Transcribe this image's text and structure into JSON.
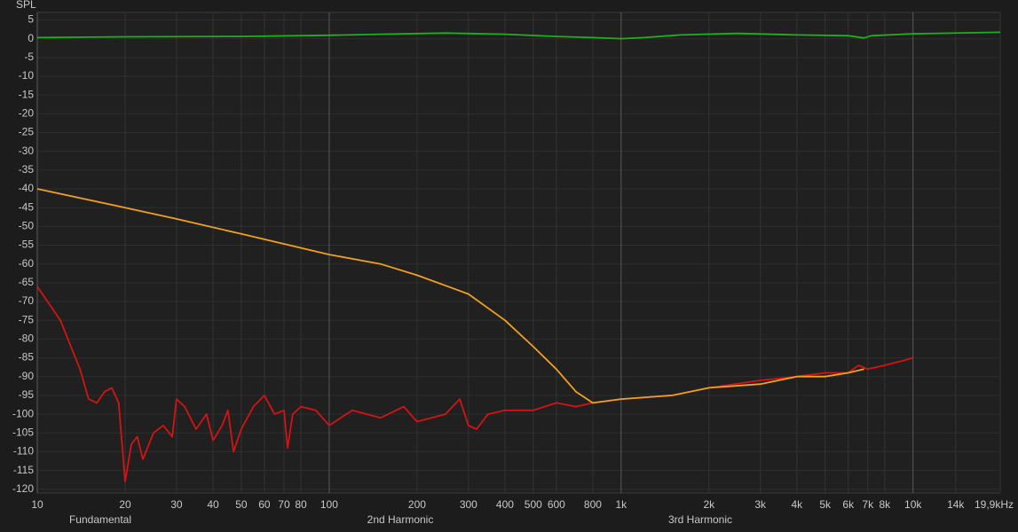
{
  "chart_data": {
    "type": "line",
    "y_label": "SPL",
    "log_x": true,
    "grid": true,
    "xlim": [
      10,
      19900
    ],
    "ylim": [
      -121,
      7
    ],
    "xticks": [
      10,
      20,
      30,
      40,
      50,
      60,
      70,
      80,
      100,
      200,
      300,
      400,
      500,
      600,
      800,
      {
        "value": 1000,
        "label": "1k"
      },
      {
        "value": 2000,
        "label": "2k"
      },
      {
        "value": 3000,
        "label": "3k"
      },
      {
        "value": 4000,
        "label": "4k"
      },
      {
        "value": 5000,
        "label": "5k"
      },
      {
        "value": 6000,
        "label": "6k"
      },
      {
        "value": 7000,
        "label": "7k"
      },
      {
        "value": 8000,
        "label": "8k"
      },
      {
        "value": 10000,
        "label": "10k"
      },
      {
        "value": 14000,
        "label": "14k"
      },
      {
        "value": 19900,
        "label": "19,9kHz"
      }
    ],
    "yticks": [
      5,
      0,
      -5,
      -10,
      -15,
      -20,
      -25,
      -30,
      -35,
      -40,
      -45,
      -50,
      -55,
      -60,
      -65,
      -70,
      -75,
      -80,
      -85,
      -90,
      -95,
      -100,
      -105,
      -110,
      -115,
      -120
    ],
    "series": [
      {
        "name": "Fundamental",
        "color": "#1fb01f",
        "x": [
          10,
          20,
          50,
          100,
          150,
          250,
          400,
          600,
          800,
          1000,
          1200,
          1600,
          2500,
          4000,
          6000,
          6800,
          7200,
          10000,
          19900
        ],
        "values": [
          0.3,
          0.5,
          0.6,
          0.9,
          1.2,
          1.5,
          1.2,
          0.6,
          0.3,
          0.0,
          0.3,
          1.0,
          1.4,
          1.0,
          0.8,
          0.2,
          0.8,
          1.3,
          1.7
        ]
      },
      {
        "name": "2nd Harmonic",
        "color": "#d41414",
        "x": [
          10,
          12,
          14,
          15,
          16,
          17,
          18,
          19,
          20,
          21,
          22,
          23,
          25,
          27,
          29,
          30,
          32,
          35,
          38,
          40,
          43,
          45,
          47,
          50,
          55,
          60,
          65,
          70,
          72,
          75,
          80,
          90,
          100,
          120,
          150,
          180,
          200,
          250,
          280,
          300,
          320,
          350,
          400,
          500,
          600,
          700,
          800,
          1000,
          1500,
          2000,
          3000,
          4000,
          5000,
          6000,
          6500,
          7000,
          8000,
          9000,
          10000
        ],
        "values": [
          -66,
          -75,
          -88,
          -96,
          -97,
          -94,
          -93,
          -97,
          -118,
          -108,
          -106,
          -112,
          -105,
          -103,
          -106,
          -96,
          -98,
          -104,
          -100,
          -107,
          -103,
          -99,
          -110,
          -104,
          -98,
          -95,
          -100,
          -99,
          -109,
          -100,
          -98,
          -99,
          -103,
          -99,
          -101,
          -98,
          -102,
          -100,
          -96,
          -103,
          -104,
          -100,
          -99,
          -99,
          -97,
          -98,
          -97,
          -96,
          -95,
          -93,
          -91,
          -90,
          -89,
          -89,
          -87,
          -88,
          -87,
          -86,
          -85
        ]
      },
      {
        "name": "3rd Harmonic",
        "color": "#f0a020",
        "x": [
          10,
          20,
          30,
          50,
          100,
          150,
          200,
          300,
          400,
          500,
          600,
          700,
          800,
          1000,
          1500,
          2000,
          3000,
          4000,
          5000,
          6000,
          6800
        ],
        "values": [
          -40,
          -45,
          -48,
          -52,
          -57.5,
          -60,
          -63,
          -68,
          -75,
          -82,
          -88,
          -94,
          -97,
          -96,
          -95,
          -93,
          -92,
          -90,
          -90,
          -89,
          -88
        ]
      }
    ]
  }
}
